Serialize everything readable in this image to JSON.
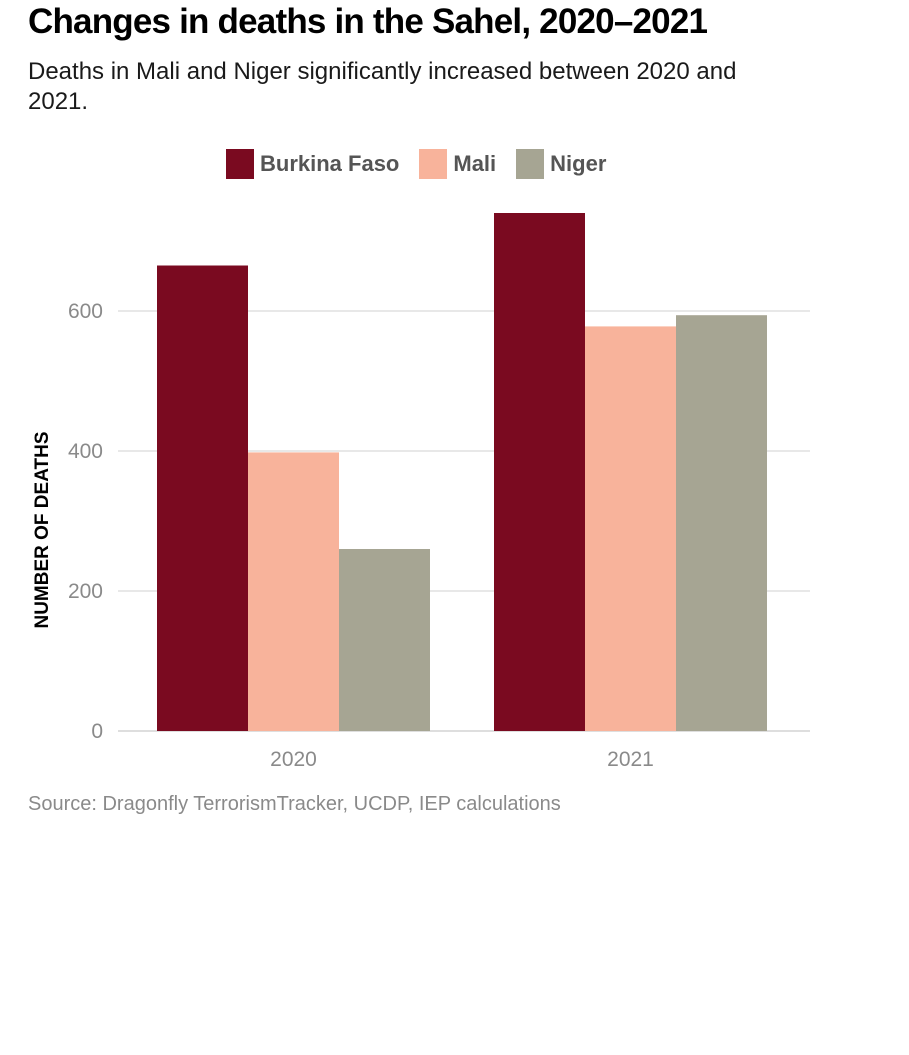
{
  "title": "Changes in deaths in the Sahel, 2020–2021",
  "subtitle": "Deaths in Mali and Niger significantly increased between 2020 and 2021.",
  "source": "Source: Dragonfly TerrorismTracker, UCDP, IEP calculations",
  "chart_data": {
    "type": "bar",
    "title": "Changes in deaths in the Sahel, 2020–2021",
    "xlabel": "",
    "ylabel": "NUMBER OF DEATHS",
    "categories": [
      "2020",
      "2021"
    ],
    "yticks": [
      "0",
      "200",
      "400",
      "600"
    ],
    "ylim": [
      0,
      800
    ],
    "grid": true,
    "legend_position": "top",
    "series": [
      {
        "name": "Burkina Faso",
        "color": "#7a0a20",
        "values": [
          665,
          740
        ]
      },
      {
        "name": "Mali",
        "color": "#f8b39b",
        "values": [
          398,
          578
        ]
      },
      {
        "name": "Niger",
        "color": "#a6a593",
        "values": [
          260,
          594
        ]
      }
    ]
  }
}
